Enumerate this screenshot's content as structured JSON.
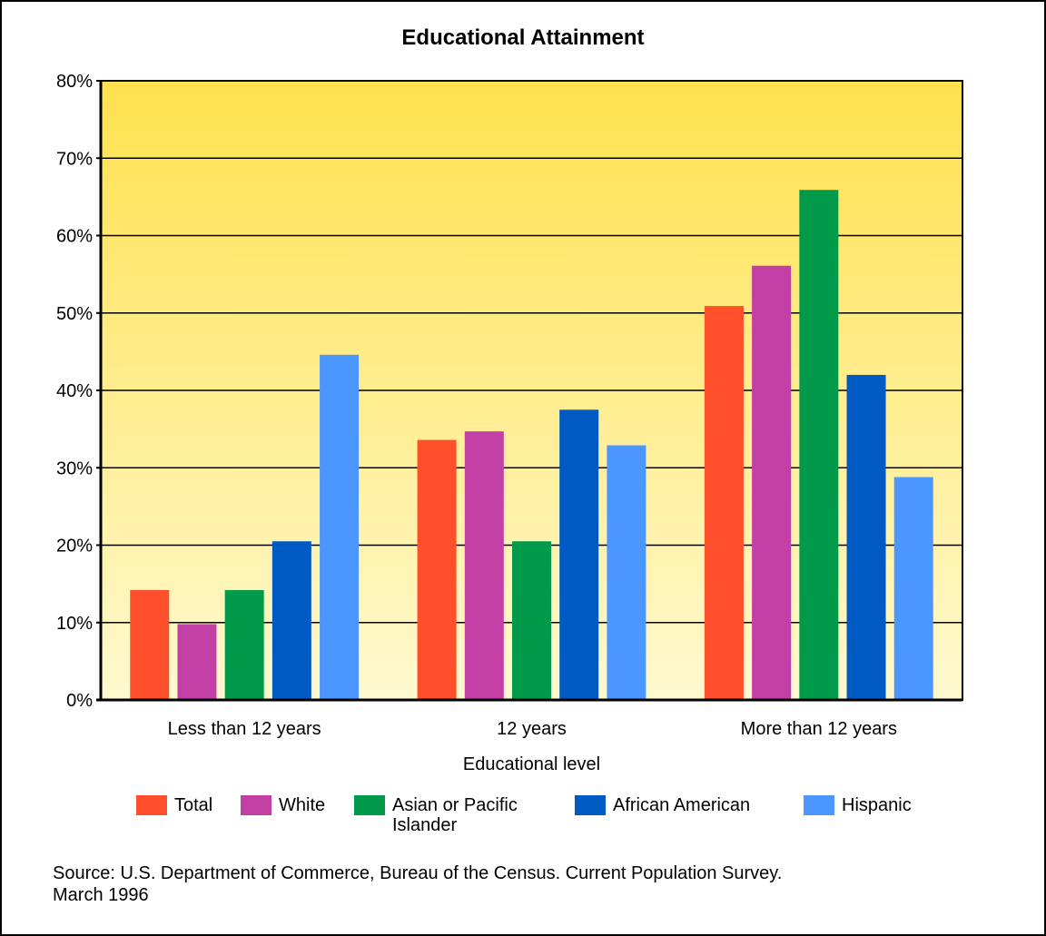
{
  "chart_data": {
    "type": "bar",
    "title": "Educational Attainment",
    "xlabel": "Educational level",
    "ylabel": "",
    "categories": [
      "Less than 12 years",
      "12 years",
      "More than 12 years"
    ],
    "ylim": [
      0,
      80
    ],
    "yticks": [
      0,
      10,
      20,
      30,
      40,
      50,
      60,
      70,
      80
    ],
    "ytick_labels": [
      "0%",
      "10%",
      "20%",
      "30%",
      "40%",
      "50%",
      "60%",
      "70%",
      "80%"
    ],
    "grid": true,
    "legend_position": "bottom",
    "background_gradient": [
      "#FFE14D",
      "#FFF9D0"
    ],
    "series": [
      {
        "name": "Total",
        "color": "#FF4F2B",
        "values": [
          14.2,
          33.6,
          50.9
        ]
      },
      {
        "name": "White",
        "color": "#C23FA5",
        "values": [
          9.8,
          34.7,
          56.1
        ]
      },
      {
        "name": "Asian or Pacific\nIslander",
        "color": "#009A4A",
        "values": [
          14.2,
          20.5,
          65.9
        ]
      },
      {
        "name": "African American",
        "color": "#005AC3",
        "values": [
          20.5,
          37.5,
          42.0
        ]
      },
      {
        "name": "Hispanic",
        "color": "#4C97FF",
        "values": [
          44.6,
          32.9,
          28.8
        ]
      }
    ],
    "source": "Source:  U.S. Department of Commerce, Bureau of the Census. Current Population Survey.\nMarch 1996"
  }
}
